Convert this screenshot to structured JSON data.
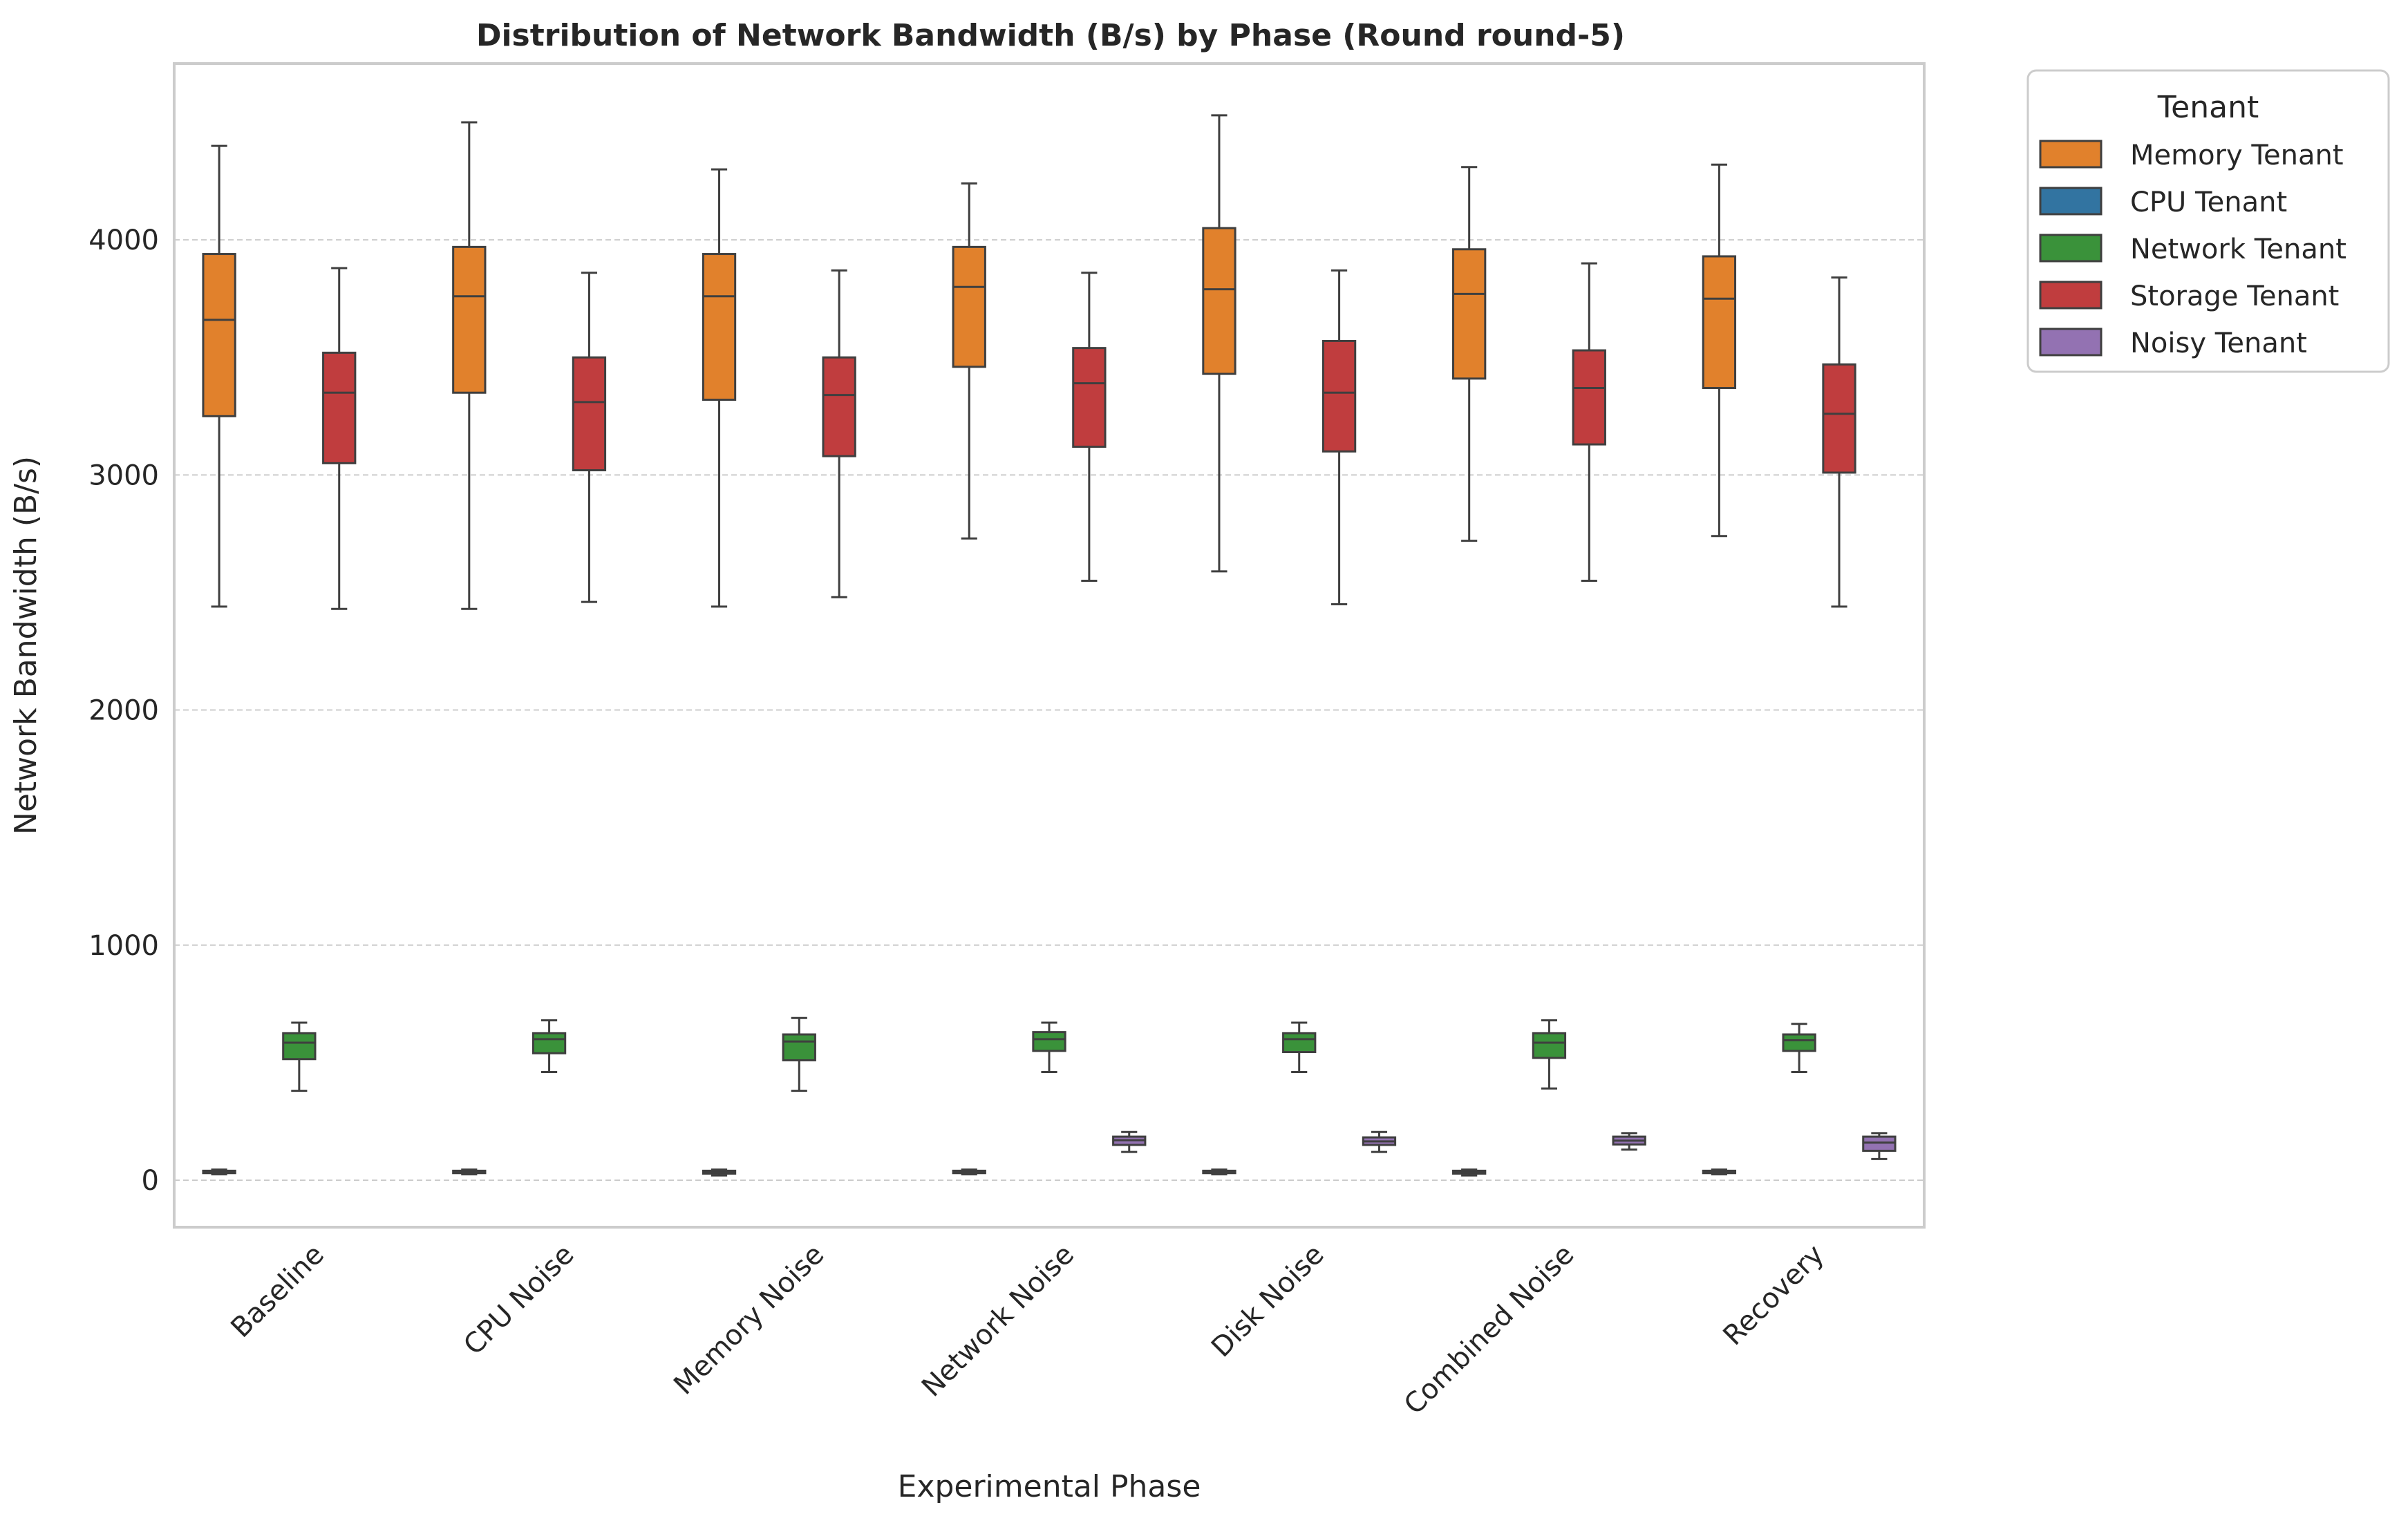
{
  "chart_data": {
    "type": "box",
    "title": "Distribution of Network Bandwidth (B/s) by Phase (Round round-5)",
    "xlabel": "Experimental Phase",
    "ylabel": "Network Bandwidth (B/s)",
    "ylim": [
      -200,
      4750
    ],
    "yticks": [
      0,
      1000,
      2000,
      3000,
      4000
    ],
    "grid": true,
    "categories": [
      "Baseline",
      "CPU Noise",
      "Memory Noise",
      "Network Noise",
      "Disk Noise",
      "Combined Noise",
      "Recovery"
    ],
    "legend": {
      "title": "Tenant",
      "placement": "outside-upper-right"
    },
    "hue_order": [
      "Memory Tenant",
      "CPU Tenant",
      "Network Tenant",
      "Storage Tenant",
      "Noisy Tenant"
    ],
    "series": [
      {
        "name": "Memory Tenant",
        "color": "#e1812c",
        "boxes": [
          {
            "whislo": 2440,
            "q1": 3250,
            "med": 3660,
            "q3": 3940,
            "whishi": 4400
          },
          {
            "whislo": 2430,
            "q1": 3350,
            "med": 3760,
            "q3": 3970,
            "whishi": 4500
          },
          {
            "whislo": 2440,
            "q1": 3320,
            "med": 3760,
            "q3": 3940,
            "whishi": 4300
          },
          {
            "whislo": 2730,
            "q1": 3460,
            "med": 3800,
            "q3": 3970,
            "whishi": 4240
          },
          {
            "whislo": 2590,
            "q1": 3430,
            "med": 3790,
            "q3": 4050,
            "whishi": 4530
          },
          {
            "whislo": 2720,
            "q1": 3410,
            "med": 3770,
            "q3": 3960,
            "whishi": 4310
          },
          {
            "whislo": 2740,
            "q1": 3370,
            "med": 3750,
            "q3": 3930,
            "whishi": 4320
          }
        ]
      },
      {
        "name": "CPU Tenant",
        "color": "#3274a1",
        "boxes": [
          null,
          null,
          null,
          null,
          null,
          null,
          null
        ]
      },
      {
        "name": "Network Tenant",
        "color": "#3a923a",
        "boxes": [
          {
            "whislo": 380,
            "q1": 515,
            "med": 585,
            "q3": 625,
            "whishi": 670
          },
          {
            "whislo": 460,
            "q1": 540,
            "med": 600,
            "q3": 625,
            "whishi": 680
          },
          {
            "whislo": 380,
            "q1": 510,
            "med": 590,
            "q3": 620,
            "whishi": 690
          },
          {
            "whislo": 460,
            "q1": 550,
            "med": 600,
            "q3": 630,
            "whishi": 670
          },
          {
            "whislo": 460,
            "q1": 545,
            "med": 600,
            "q3": 625,
            "whishi": 670
          },
          {
            "whislo": 390,
            "q1": 520,
            "med": 585,
            "q3": 625,
            "whishi": 680
          },
          {
            "whislo": 460,
            "q1": 550,
            "med": 595,
            "q3": 620,
            "whishi": 665
          }
        ]
      },
      {
        "name": "Storage Tenant",
        "color": "#c03d3e",
        "boxes": [
          {
            "whislo": 2430,
            "q1": 3050,
            "med": 3350,
            "q3": 3520,
            "whishi": 3880
          },
          {
            "whislo": 2460,
            "q1": 3020,
            "med": 3310,
            "q3": 3500,
            "whishi": 3860
          },
          {
            "whislo": 2480,
            "q1": 3080,
            "med": 3340,
            "q3": 3500,
            "whishi": 3870
          },
          {
            "whislo": 2550,
            "q1": 3120,
            "med": 3390,
            "q3": 3540,
            "whishi": 3860
          },
          {
            "whislo": 2450,
            "q1": 3100,
            "med": 3350,
            "q3": 3570,
            "whishi": 3870
          },
          {
            "whislo": 2550,
            "q1": 3130,
            "med": 3370,
            "q3": 3530,
            "whishi": 3900
          },
          {
            "whislo": 2440,
            "q1": 3010,
            "med": 3260,
            "q3": 3470,
            "whishi": 3840
          }
        ]
      },
      {
        "name": "Noisy Tenant",
        "color": "#9372b2",
        "boxes": [
          null,
          null,
          null,
          {
            "whislo": 120,
            "q1": 150,
            "med": 170,
            "q3": 185,
            "whishi": 205
          },
          {
            "whislo": 120,
            "q1": 150,
            "med": 165,
            "q3": 182,
            "whishi": 205
          },
          {
            "whislo": 130,
            "q1": 152,
            "med": 168,
            "q3": 185,
            "whishi": 200
          },
          {
            "whislo": 90,
            "q1": 125,
            "med": 160,
            "q3": 185,
            "whishi": 200
          }
        ]
      }
    ],
    "cpu_tenant_flat_boxes": [
      {
        "whislo": 25,
        "q1": 30,
        "med": 35,
        "q3": 40,
        "whishi": 45
      },
      {
        "whislo": 25,
        "q1": 30,
        "med": 35,
        "q3": 40,
        "whishi": 45
      },
      {
        "whislo": 20,
        "q1": 28,
        "med": 33,
        "q3": 40,
        "whishi": 45
      },
      {
        "whislo": 25,
        "q1": 30,
        "med": 35,
        "q3": 40,
        "whishi": 45
      },
      {
        "whislo": 25,
        "q1": 30,
        "med": 35,
        "q3": 40,
        "whishi": 45
      },
      {
        "whislo": 20,
        "q1": 28,
        "med": 33,
        "q3": 40,
        "whishi": 45
      },
      {
        "whislo": 25,
        "q1": 30,
        "med": 35,
        "q3": 40,
        "whishi": 45
      }
    ]
  }
}
